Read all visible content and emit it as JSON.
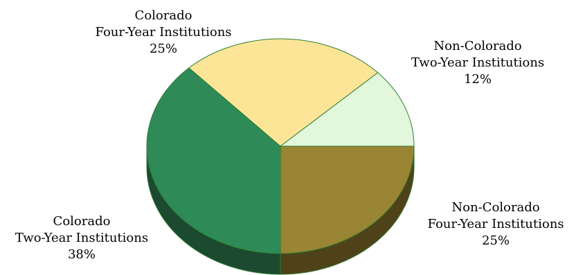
{
  "chart_data": {
    "type": "pie",
    "title": "",
    "three_d": true,
    "slices": [
      {
        "name_line1": "Non-Colorado",
        "name_line2": "Four-Year Institutions",
        "label": "25%",
        "value": 25,
        "color": "#9A8535",
        "side_color": "#4F4219"
      },
      {
        "name_line1": "Colorado",
        "name_line2": "Two-Year Institutions",
        "label": "38%",
        "value": 38,
        "color": "#2E8B57",
        "side_color": "#1B4A30"
      },
      {
        "name_line1": "Colorado",
        "name_line2": "Four-Year Institutions",
        "label": "25%",
        "value": 25,
        "color": "#FDE598",
        "side_color": "#C9B36A"
      },
      {
        "name_line1": "Non-Colorado",
        "name_line2": "Two-Year Institutions",
        "label": "12%",
        "value": 12,
        "color": "#E2F7DC",
        "side_color": "#A9C4A0"
      }
    ],
    "start_angle_deg": 0,
    "direction": "clockwise",
    "border_color": "#2E7D32"
  }
}
